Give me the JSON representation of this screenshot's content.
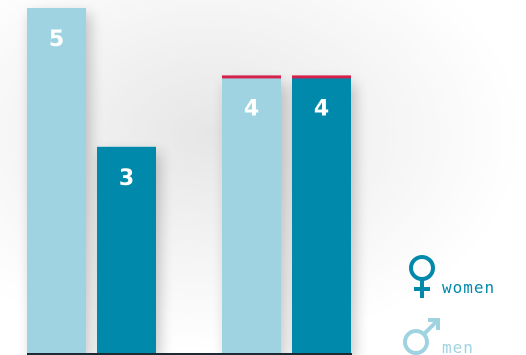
{
  "chart_data": {
    "type": "bar",
    "categories": [
      "",
      ""
    ],
    "series": [
      {
        "name": "women",
        "values": [
          5,
          4
        ]
      },
      {
        "name": "men",
        "values": [
          3,
          4
        ]
      }
    ],
    "data_labels": [
      [
        5,
        4
      ],
      [
        3,
        4
      ]
    ],
    "highlight": {
      "categories": [
        1
      ],
      "color": "#d4204a"
    },
    "ylim": [
      0,
      5
    ],
    "grid": false,
    "legend_position": "bottom-right"
  },
  "legend": {
    "women": {
      "label": "women",
      "icon": "female-symbol-icon",
      "color": "#0089aa"
    },
    "men": {
      "label": "men",
      "icon": "male-symbol-icon",
      "color": "#9fd3e1"
    }
  },
  "colors": {
    "bar_light": "#9fd3e1",
    "bar_dark": "#0089aa",
    "axis": "#1b2a33"
  }
}
